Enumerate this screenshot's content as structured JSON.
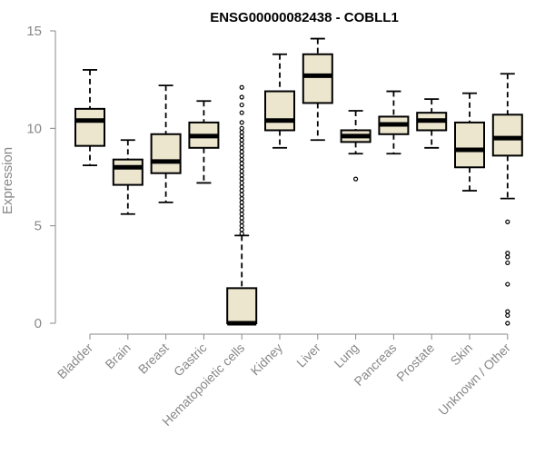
{
  "chart_data": {
    "type": "boxplot",
    "title": "ENSG00000082438 - COBLL1",
    "xlabel": "",
    "ylabel": "Expression",
    "ylim": [
      0,
      15
    ],
    "yticks": [
      0,
      5,
      10,
      15
    ],
    "grid": false,
    "categories": [
      "Bladder",
      "Brain",
      "Breast",
      "Gastric",
      "Hematopoietic cells",
      "Kidney",
      "Liver",
      "Lung",
      "Pancreas",
      "Prostate",
      "Skin",
      "Unknown / Other"
    ],
    "boxes": [
      {
        "min": 8.1,
        "q1": 9.1,
        "median": 10.4,
        "q3": 11.0,
        "max": 13.0,
        "outliers": []
      },
      {
        "min": 5.6,
        "q1": 7.1,
        "median": 8.0,
        "q3": 8.4,
        "max": 9.4,
        "outliers": []
      },
      {
        "min": 6.2,
        "q1": 7.7,
        "median": 8.3,
        "q3": 9.7,
        "max": 12.2,
        "outliers": []
      },
      {
        "min": 7.2,
        "q1": 9.0,
        "median": 9.6,
        "q3": 10.3,
        "max": 11.4,
        "outliers": []
      },
      {
        "min": 0.0,
        "q1": 0.0,
        "median": 0.0,
        "q3": 1.8,
        "max": 4.5,
        "outliers": [
          4.6,
          4.8,
          5.0,
          5.2,
          5.4,
          5.6,
          5.8,
          6.0,
          6.2,
          6.4,
          6.6,
          6.8,
          7.0,
          7.2,
          7.4,
          7.6,
          7.8,
          8.0,
          8.2,
          8.4,
          8.6,
          8.8,
          9.0,
          9.2,
          9.4,
          9.6,
          9.8,
          10.0,
          10.3,
          10.8,
          11.2,
          11.6,
          12.1
        ]
      },
      {
        "min": 9.0,
        "q1": 9.9,
        "median": 10.4,
        "q3": 11.9,
        "max": 13.8,
        "outliers": []
      },
      {
        "min": 9.4,
        "q1": 11.3,
        "median": 12.7,
        "q3": 13.8,
        "max": 14.6,
        "outliers": []
      },
      {
        "min": 8.7,
        "q1": 9.3,
        "median": 9.6,
        "q3": 9.9,
        "max": 10.9,
        "outliers": [
          7.4
        ]
      },
      {
        "min": 8.7,
        "q1": 9.7,
        "median": 10.2,
        "q3": 10.6,
        "max": 11.9,
        "outliers": []
      },
      {
        "min": 9.0,
        "q1": 9.9,
        "median": 10.4,
        "q3": 10.8,
        "max": 11.5,
        "outliers": []
      },
      {
        "min": 6.8,
        "q1": 8.0,
        "median": 8.9,
        "q3": 10.3,
        "max": 11.8,
        "outliers": []
      },
      {
        "min": 6.4,
        "q1": 8.6,
        "median": 9.5,
        "q3": 10.7,
        "max": 12.8,
        "outliers": [
          0.0,
          0.4,
          0.6,
          2.0,
          3.1,
          3.4,
          3.6,
          5.2
        ]
      }
    ],
    "colors": {
      "box_fill": "#ede6cf",
      "stroke": "#000000",
      "axis": "#888888"
    }
  }
}
